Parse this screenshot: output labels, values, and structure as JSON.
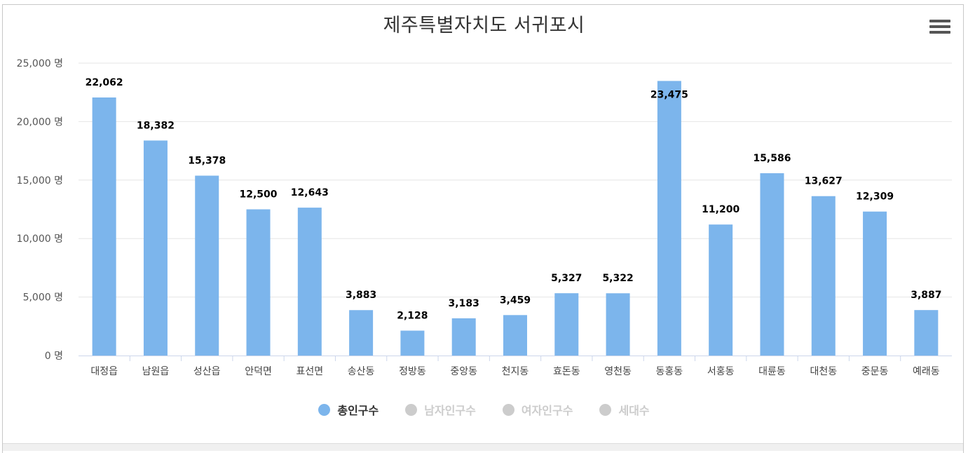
{
  "chart_data": {
    "type": "bar",
    "title": "제주특별자치도 서귀포시",
    "unit": "명",
    "categories": [
      "대정읍",
      "남원읍",
      "성산읍",
      "안덕면",
      "표선면",
      "송산동",
      "정방동",
      "중앙동",
      "천지동",
      "효돈동",
      "영천동",
      "동홍동",
      "서홍동",
      "대륜동",
      "대천동",
      "중문동",
      "예래동"
    ],
    "series": [
      {
        "name": "총인구수",
        "values": [
          22062,
          18382,
          15378,
          12500,
          12643,
          3883,
          2128,
          3183,
          3459,
          5327,
          5322,
          23475,
          11200,
          15586,
          13627,
          12309,
          3887
        ],
        "color": "#7cb5ec",
        "visible": true
      }
    ],
    "data_labels": [
      "22,062",
      "18,382",
      "15,378",
      "12,500",
      "12,643",
      "3,883",
      "2,128",
      "3,183",
      "3,459",
      "5,327",
      "5,322",
      "23,475",
      "11,200",
      "15,586",
      "13,627",
      "12,309",
      "3,887"
    ],
    "ylim": [
      0,
      25000
    ],
    "yticks": [
      0,
      5000,
      10000,
      15000,
      20000,
      25000
    ],
    "ytick_labels": [
      "0 명",
      "5,000 명",
      "10,000 명",
      "15,000 명",
      "20,000 명",
      "25,000 명"
    ],
    "grid": true,
    "legend_position": "bottom-center"
  },
  "legend": [
    {
      "label": "총인구수",
      "color": "#7cb5ec",
      "text_color": "#333333"
    },
    {
      "label": "남자인구수",
      "color": "#cccccc",
      "text_color": "#cccccc"
    },
    {
      "label": "여자인구수",
      "color": "#cccccc",
      "text_color": "#cccccc"
    },
    {
      "label": "세대수",
      "color": "#cccccc",
      "text_color": "#cccccc"
    }
  ],
  "menu_icon": "hamburger-menu-icon"
}
